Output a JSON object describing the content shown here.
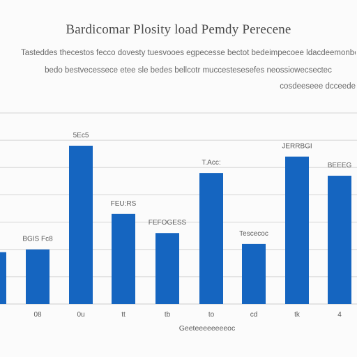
{
  "chart_data": {
    "type": "bar",
    "title": "Bardicomar Plosity load Pemdy Perecene",
    "subtitle": [
      "Tasteddes thecestos fecco dovesty tuesvooes egpecesse bectot bedeimpecoee ldacdeemonbecoes",
      "bedo bestvecessece etee sle bedes bellcotr  muccestesesefes neossiowecsectec",
      "cosdeeseee dcceede"
    ],
    "categories": [
      "",
      "08",
      "0u",
      "tt",
      "tb",
      "to",
      "cd",
      "tk",
      "4"
    ],
    "values": [
      38,
      40,
      116,
      66,
      52,
      96,
      44,
      108,
      94
    ],
    "data_labels": [
      "",
      "BGIS Fc8",
      "5Ec5",
      "FEU:RS",
      "FEFOGESS",
      "T.Acc:",
      "Tescecoc",
      "JERRBGI",
      "BEEEG"
    ],
    "xlabel": "Geeteeeeeeeeoc",
    "ylabel": "",
    "ylim": [
      0,
      140
    ],
    "grid": true,
    "colors": {
      "bar": "#1565c0",
      "grid": "#d6d6d6",
      "text": "#5a5a5a"
    }
  }
}
